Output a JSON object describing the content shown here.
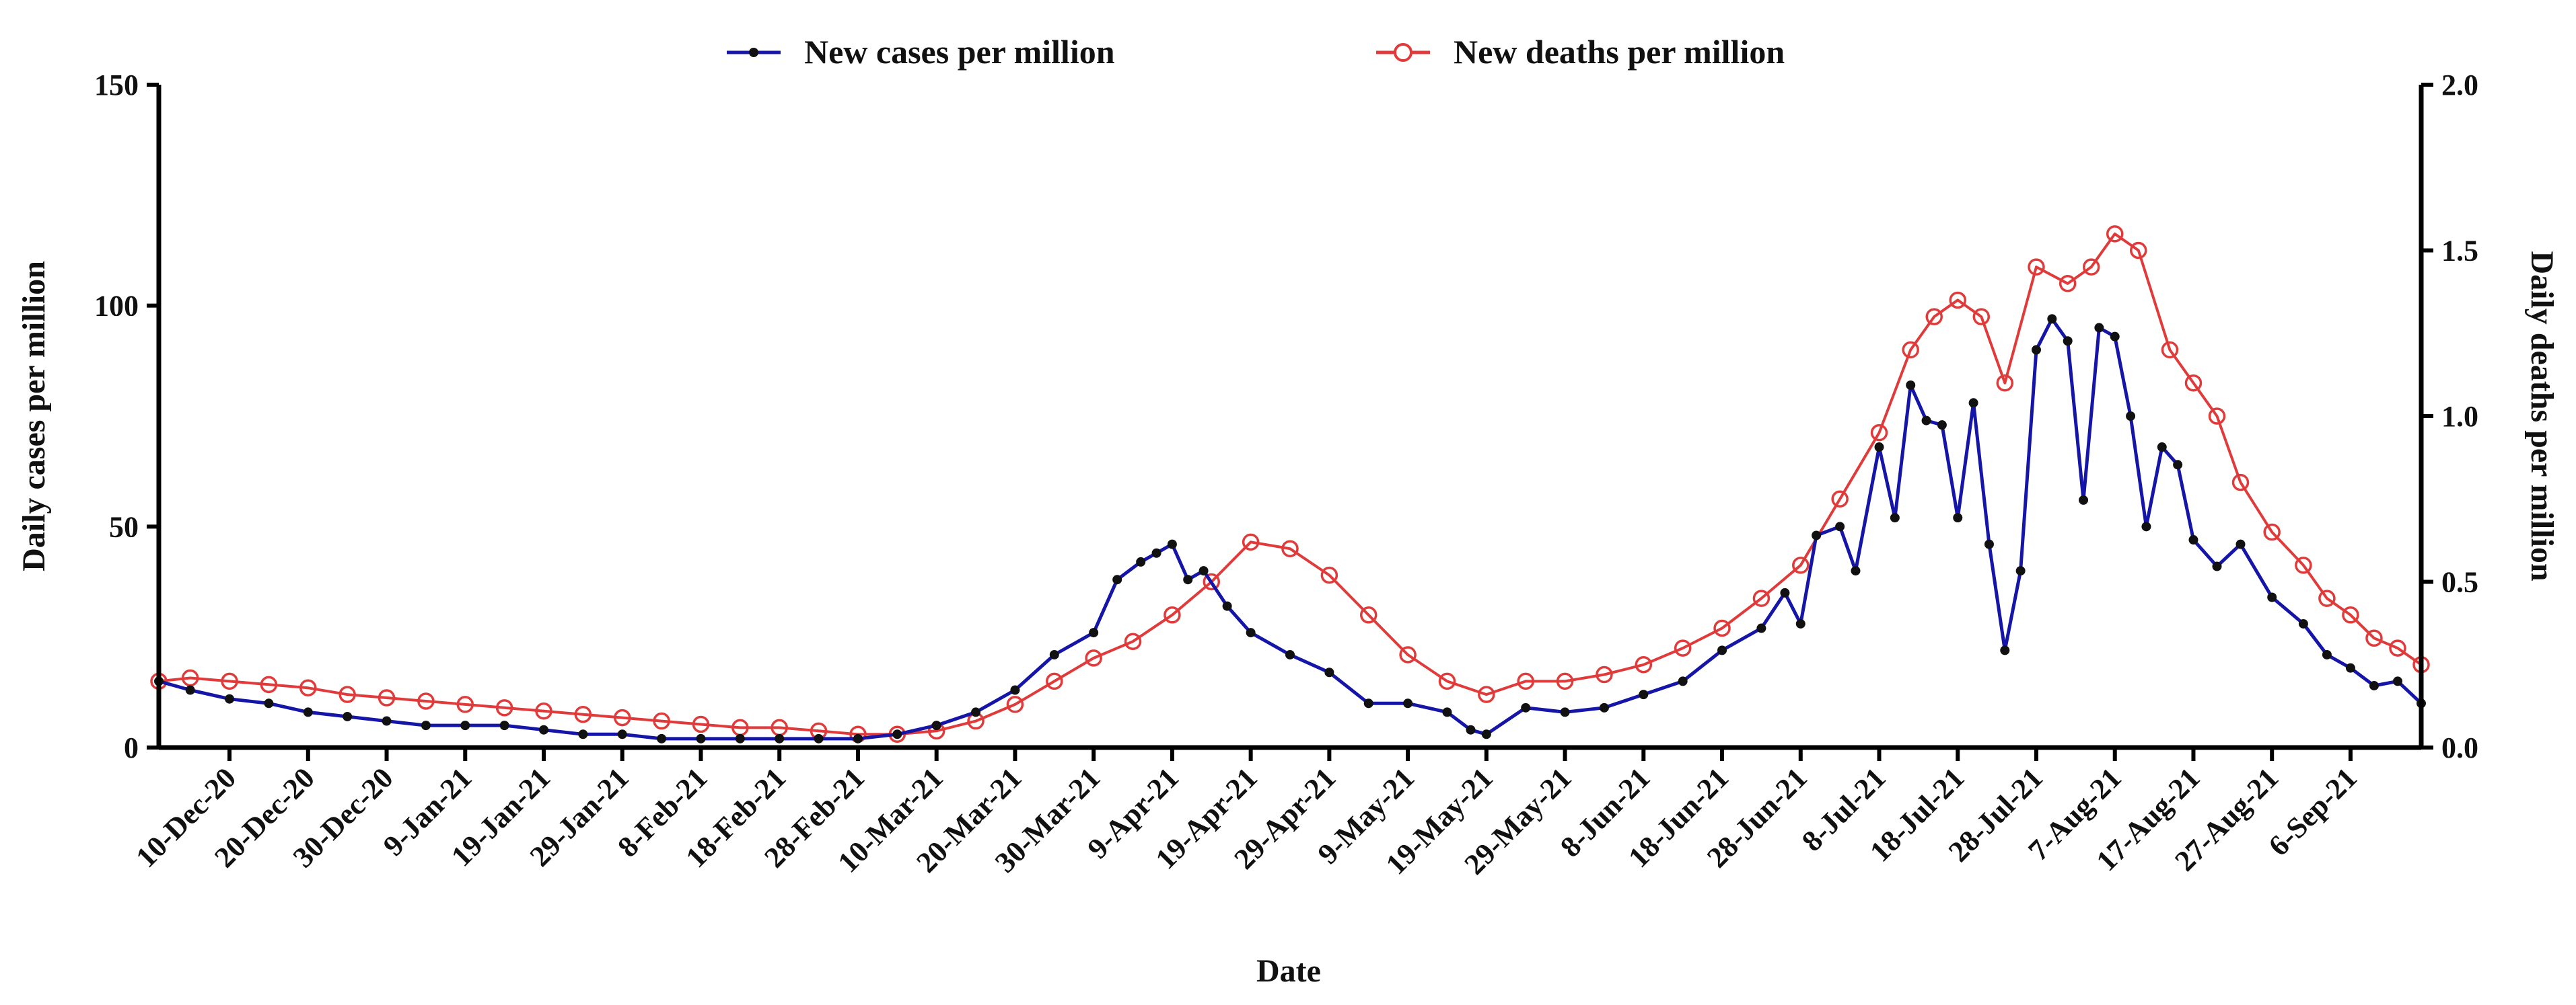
{
  "chart_data": {
    "type": "line",
    "title": "",
    "xlabel": "Date",
    "ylabel": "Daily cases per million",
    "y2label": "Daily deaths per million",
    "ylim": [
      0,
      150
    ],
    "y2lim": [
      0,
      2.0
    ],
    "yticks": [
      "0",
      "50",
      "100",
      "150"
    ],
    "y2ticks": [
      "0.0",
      "0.5",
      "1.0",
      "1.5",
      "2.0"
    ],
    "x_range": [
      "2020-12-01",
      "2021-09-15"
    ],
    "xticks": [
      "10-Dec-20",
      "20-Dec-20",
      "30-Dec-20",
      "9-Jan-21",
      "19-Jan-21",
      "29-Jan-21",
      "8-Feb-21",
      "18-Feb-21",
      "28-Feb-21",
      "10-Mar-21",
      "20-Mar-21",
      "30-Mar-21",
      "9-Apr-21",
      "19-Apr-21",
      "29-Apr-21",
      "9-May-21",
      "19-May-21",
      "29-May-21",
      "8-Jun-21",
      "18-Jun-21",
      "28-Jun-21",
      "8-Jul-21",
      "18-Jul-21",
      "28-Jul-21",
      "7-Aug-21",
      "17-Aug-21",
      "27-Aug-21",
      "6-Sep-21"
    ],
    "legend_position": "top",
    "grid": false,
    "series": [
      {
        "name": "New cases per million",
        "axis": "left",
        "color": "#1515a8",
        "marker_color": "#111111",
        "marker": "filled-circle",
        "x": [
          "2020-12-01",
          "2020-12-05",
          "2020-12-10",
          "2020-12-15",
          "2020-12-20",
          "2020-12-25",
          "2020-12-30",
          "2021-01-04",
          "2021-01-09",
          "2021-01-14",
          "2021-01-19",
          "2021-01-24",
          "2021-01-29",
          "2021-02-03",
          "2021-02-08",
          "2021-02-13",
          "2021-02-18",
          "2021-02-23",
          "2021-02-28",
          "2021-03-05",
          "2021-03-10",
          "2021-03-15",
          "2021-03-20",
          "2021-03-25",
          "2021-03-30",
          "2021-04-02",
          "2021-04-05",
          "2021-04-07",
          "2021-04-09",
          "2021-04-11",
          "2021-04-13",
          "2021-04-16",
          "2021-04-19",
          "2021-04-24",
          "2021-04-29",
          "2021-05-04",
          "2021-05-09",
          "2021-05-14",
          "2021-05-17",
          "2021-05-19",
          "2021-05-24",
          "2021-05-29",
          "2021-06-03",
          "2021-06-08",
          "2021-06-13",
          "2021-06-18",
          "2021-06-23",
          "2021-06-26",
          "2021-06-28",
          "2021-06-30",
          "2021-07-03",
          "2021-07-05",
          "2021-07-08",
          "2021-07-10",
          "2021-07-12",
          "2021-07-14",
          "2021-07-16",
          "2021-07-18",
          "2021-07-20",
          "2021-07-22",
          "2021-07-24",
          "2021-07-26",
          "2021-07-28",
          "2021-07-30",
          "2021-08-01",
          "2021-08-03",
          "2021-08-05",
          "2021-08-07",
          "2021-08-09",
          "2021-08-11",
          "2021-08-13",
          "2021-08-15",
          "2021-08-17",
          "2021-08-20",
          "2021-08-23",
          "2021-08-27",
          "2021-08-31",
          "2021-09-03",
          "2021-09-06",
          "2021-09-09",
          "2021-09-12",
          "2021-09-15"
        ],
        "values": [
          15,
          13,
          11,
          10,
          8,
          7,
          6,
          5,
          5,
          5,
          4,
          3,
          3,
          2,
          2,
          2,
          2,
          2,
          2,
          3,
          5,
          8,
          13,
          21,
          26,
          38,
          42,
          44,
          46,
          38,
          40,
          32,
          26,
          21,
          17,
          10,
          10,
          8,
          4,
          3,
          9,
          8,
          9,
          12,
          15,
          22,
          27,
          35,
          28,
          48,
          50,
          40,
          68,
          52,
          82,
          74,
          73,
          52,
          78,
          46,
          22,
          40,
          90,
          97,
          92,
          56,
          95,
          93,
          75,
          50,
          68,
          64,
          47,
          41,
          46,
          34,
          28,
          21,
          18,
          14,
          15,
          10
        ]
      },
      {
        "name": "New deaths per million",
        "axis": "right",
        "color": "#e03a3a",
        "marker": "open-circle",
        "x": [
          "2020-12-01",
          "2020-12-05",
          "2020-12-10",
          "2020-12-15",
          "2020-12-20",
          "2020-12-25",
          "2020-12-30",
          "2021-01-04",
          "2021-01-09",
          "2021-01-14",
          "2021-01-19",
          "2021-01-24",
          "2021-01-29",
          "2021-02-03",
          "2021-02-08",
          "2021-02-13",
          "2021-02-18",
          "2021-02-23",
          "2021-02-28",
          "2021-03-05",
          "2021-03-10",
          "2021-03-15",
          "2021-03-20",
          "2021-03-25",
          "2021-03-30",
          "2021-04-04",
          "2021-04-09",
          "2021-04-14",
          "2021-04-19",
          "2021-04-24",
          "2021-04-29",
          "2021-05-04",
          "2021-05-09",
          "2021-05-14",
          "2021-05-19",
          "2021-05-24",
          "2021-05-29",
          "2021-06-03",
          "2021-06-08",
          "2021-06-13",
          "2021-06-18",
          "2021-06-23",
          "2021-06-28",
          "2021-07-03",
          "2021-07-08",
          "2021-07-12",
          "2021-07-15",
          "2021-07-18",
          "2021-07-21",
          "2021-07-24",
          "2021-07-28",
          "2021-08-01",
          "2021-08-04",
          "2021-08-07",
          "2021-08-10",
          "2021-08-14",
          "2021-08-17",
          "2021-08-20",
          "2021-08-23",
          "2021-08-27",
          "2021-08-31",
          "2021-09-03",
          "2021-09-06",
          "2021-09-09",
          "2021-09-12",
          "2021-09-15"
        ],
        "values": [
          0.2,
          0.21,
          0.2,
          0.19,
          0.18,
          0.16,
          0.15,
          0.14,
          0.13,
          0.12,
          0.11,
          0.1,
          0.09,
          0.08,
          0.07,
          0.06,
          0.06,
          0.05,
          0.04,
          0.04,
          0.05,
          0.08,
          0.13,
          0.2,
          0.27,
          0.32,
          0.4,
          0.5,
          0.62,
          0.6,
          0.52,
          0.4,
          0.28,
          0.2,
          0.16,
          0.2,
          0.2,
          0.22,
          0.25,
          0.3,
          0.36,
          0.45,
          0.55,
          0.75,
          0.95,
          1.2,
          1.3,
          1.35,
          1.3,
          1.1,
          1.45,
          1.4,
          1.45,
          1.55,
          1.5,
          1.2,
          1.1,
          1.0,
          0.8,
          0.65,
          0.55,
          0.45,
          0.4,
          0.33,
          0.3,
          0.25
        ]
      }
    ]
  }
}
